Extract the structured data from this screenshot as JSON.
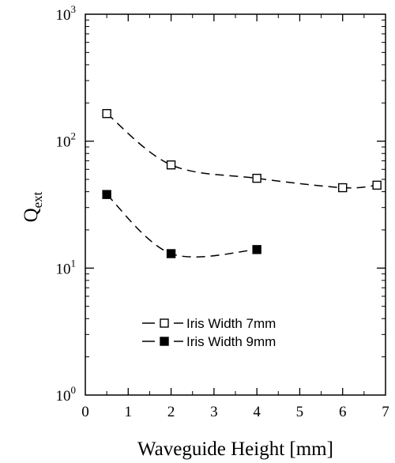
{
  "chart_data": {
    "type": "line",
    "xlabel": "Waveguide Height  [mm]",
    "ylabel_main": "Q",
    "ylabel_sub": "ext",
    "xlim": [
      0,
      7
    ],
    "ylim": [
      1,
      1000
    ],
    "yscale": "log",
    "grid": false,
    "legend_position": "bottom-center",
    "x_ticks": [
      "0",
      "1",
      "2",
      "3",
      "4",
      "5",
      "6",
      "7"
    ],
    "y_ticks": [
      {
        "base": "10",
        "exp": "0",
        "value": 1
      },
      {
        "base": "10",
        "exp": "1",
        "value": 10
      },
      {
        "base": "10",
        "exp": "2",
        "value": 100
      },
      {
        "base": "10",
        "exp": "3",
        "value": 1000
      }
    ],
    "series": [
      {
        "name": "Iris  Width  7mm",
        "marker": "open-square",
        "x": [
          0.5,
          2,
          4,
          6,
          6.8
        ],
        "y": [
          165,
          65,
          51,
          43,
          45
        ]
      },
      {
        "name": "Iris  Width  9mm",
        "marker": "filled-square",
        "x": [
          0.5,
          2,
          4
        ],
        "y": [
          38,
          13,
          14
        ]
      }
    ]
  }
}
